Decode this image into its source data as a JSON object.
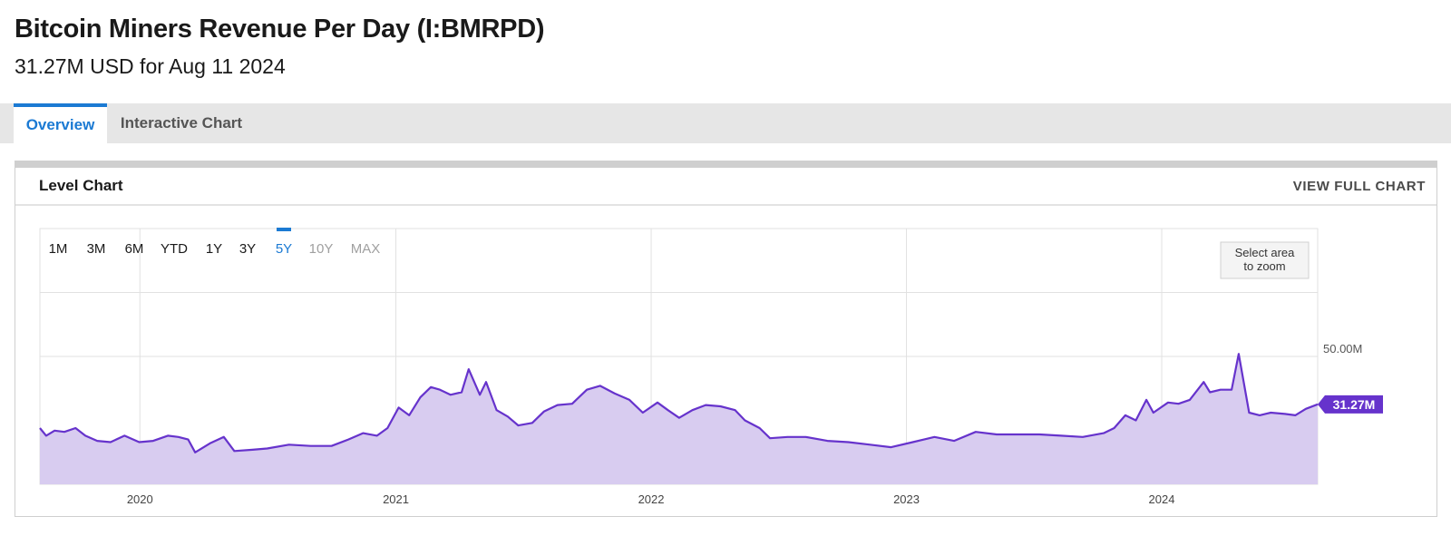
{
  "page": {
    "title": "Bitcoin Miners Revenue Per Day (I:BMRPD)",
    "subtitle": "31.27M USD for Aug 11 2024"
  },
  "tabs": [
    {
      "label": "Overview",
      "active": true
    },
    {
      "label": "Interactive Chart",
      "active": false
    }
  ],
  "panel": {
    "title": "Level Chart",
    "view_full_label": "VIEW FULL CHART"
  },
  "range_buttons": [
    {
      "label": "1M",
      "state": "enabled"
    },
    {
      "label": "3M",
      "state": "enabled"
    },
    {
      "label": "6M",
      "state": "enabled"
    },
    {
      "label": "YTD",
      "state": "enabled"
    },
    {
      "label": "1Y",
      "state": "enabled"
    },
    {
      "label": "3Y",
      "state": "enabled"
    },
    {
      "label": "5Y",
      "state": "selected"
    },
    {
      "label": "10Y",
      "state": "disabled"
    },
    {
      "label": "MAX",
      "state": "disabled"
    }
  ],
  "zoom_hint": [
    "Select area",
    "to zoom"
  ],
  "colors": {
    "accent": "#1b7ad3",
    "line": "#6633cc",
    "area": "#d8ccf0",
    "badge": "#6633cc",
    "disabled": "#a0a0a0"
  },
  "chart_data": {
    "type": "area",
    "x_ticks": [
      "2020",
      "2021",
      "2022",
      "2023",
      "2024"
    ],
    "y_ticks": [
      {
        "value": 50,
        "label": "50.00M"
      }
    ],
    "ylim": [
      0,
      100
    ],
    "xlim": [
      "2019-08-11",
      "2024-08-11"
    ],
    "last_value_label": "31.27M",
    "last_value": 31.27,
    "series": [
      {
        "unit": "M USD",
        "points": [
          [
            "2019-08-11",
            22.0
          ],
          [
            "2019-08-20",
            19.0
          ],
          [
            "2019-09-01",
            21.0
          ],
          [
            "2019-09-15",
            20.5
          ],
          [
            "2019-10-01",
            22.0
          ],
          [
            "2019-10-15",
            19.0
          ],
          [
            "2019-11-01",
            17.0
          ],
          [
            "2019-11-20",
            16.5
          ],
          [
            "2019-12-10",
            19.0
          ],
          [
            "2019-12-31",
            16.5
          ],
          [
            "2020-01-20",
            17.0
          ],
          [
            "2020-02-10",
            19.0
          ],
          [
            "2020-02-25",
            18.5
          ],
          [
            "2020-03-10",
            17.5
          ],
          [
            "2020-03-20",
            12.5
          ],
          [
            "2020-04-10",
            16.0
          ],
          [
            "2020-04-30",
            18.5
          ],
          [
            "2020-05-15",
            13.0
          ],
          [
            "2020-06-10",
            13.5
          ],
          [
            "2020-07-01",
            14.0
          ],
          [
            "2020-08-01",
            15.5
          ],
          [
            "2020-09-01",
            15.0
          ],
          [
            "2020-10-01",
            15.0
          ],
          [
            "2020-10-25",
            17.5
          ],
          [
            "2020-11-15",
            20.0
          ],
          [
            "2020-12-05",
            19.0
          ],
          [
            "2020-12-20",
            22.0
          ],
          [
            "2021-01-05",
            30.0
          ],
          [
            "2021-01-20",
            27.0
          ],
          [
            "2021-02-05",
            34.0
          ],
          [
            "2021-02-20",
            38.0
          ],
          [
            "2021-03-05",
            37.0
          ],
          [
            "2021-03-20",
            35.0
          ],
          [
            "2021-04-05",
            36.0
          ],
          [
            "2021-04-15",
            45.0
          ],
          [
            "2021-05-01",
            35.0
          ],
          [
            "2021-05-10",
            40.0
          ],
          [
            "2021-05-25",
            29.0
          ],
          [
            "2021-06-10",
            26.5
          ],
          [
            "2021-06-25",
            23.0
          ],
          [
            "2021-07-15",
            24.0
          ],
          [
            "2021-08-01",
            28.5
          ],
          [
            "2021-08-20",
            31.0
          ],
          [
            "2021-09-10",
            31.5
          ],
          [
            "2021-10-01",
            37.0
          ],
          [
            "2021-10-20",
            38.5
          ],
          [
            "2021-11-10",
            35.5
          ],
          [
            "2021-12-01",
            33.0
          ],
          [
            "2021-12-20",
            28.0
          ],
          [
            "2022-01-10",
            32.0
          ],
          [
            "2022-01-25",
            29.0
          ],
          [
            "2022-02-10",
            26.0
          ],
          [
            "2022-03-01",
            29.0
          ],
          [
            "2022-03-20",
            31.0
          ],
          [
            "2022-04-10",
            30.5
          ],
          [
            "2022-05-01",
            29.0
          ],
          [
            "2022-05-15",
            25.0
          ],
          [
            "2022-06-05",
            22.0
          ],
          [
            "2022-06-20",
            18.0
          ],
          [
            "2022-07-15",
            18.5
          ],
          [
            "2022-08-10",
            18.5
          ],
          [
            "2022-09-10",
            17.0
          ],
          [
            "2022-10-10",
            16.5
          ],
          [
            "2022-11-10",
            15.5
          ],
          [
            "2022-12-10",
            14.5
          ],
          [
            "2023-01-10",
            16.5
          ],
          [
            "2023-02-10",
            18.5
          ],
          [
            "2023-03-10",
            17.0
          ],
          [
            "2023-04-10",
            20.5
          ],
          [
            "2023-05-10",
            19.5
          ],
          [
            "2023-06-10",
            19.5
          ],
          [
            "2023-07-10",
            19.5
          ],
          [
            "2023-08-10",
            19.0
          ],
          [
            "2023-09-10",
            18.5
          ],
          [
            "2023-10-10",
            20.0
          ],
          [
            "2023-10-25",
            22.0
          ],
          [
            "2023-11-10",
            27.0
          ],
          [
            "2023-11-25",
            25.0
          ],
          [
            "2023-12-10",
            33.0
          ],
          [
            "2023-12-20",
            28.0
          ],
          [
            "2024-01-10",
            32.0
          ],
          [
            "2024-01-25",
            31.5
          ],
          [
            "2024-02-10",
            33.0
          ],
          [
            "2024-03-01",
            40.0
          ],
          [
            "2024-03-10",
            36.0
          ],
          [
            "2024-03-25",
            37.0
          ],
          [
            "2024-04-10",
            37.0
          ],
          [
            "2024-04-20",
            51.0
          ],
          [
            "2024-05-05",
            28.0
          ],
          [
            "2024-05-20",
            27.0
          ],
          [
            "2024-06-05",
            28.0
          ],
          [
            "2024-06-25",
            27.5
          ],
          [
            "2024-07-10",
            27.0
          ],
          [
            "2024-07-25",
            29.5
          ],
          [
            "2024-08-11",
            31.27
          ]
        ]
      }
    ]
  }
}
